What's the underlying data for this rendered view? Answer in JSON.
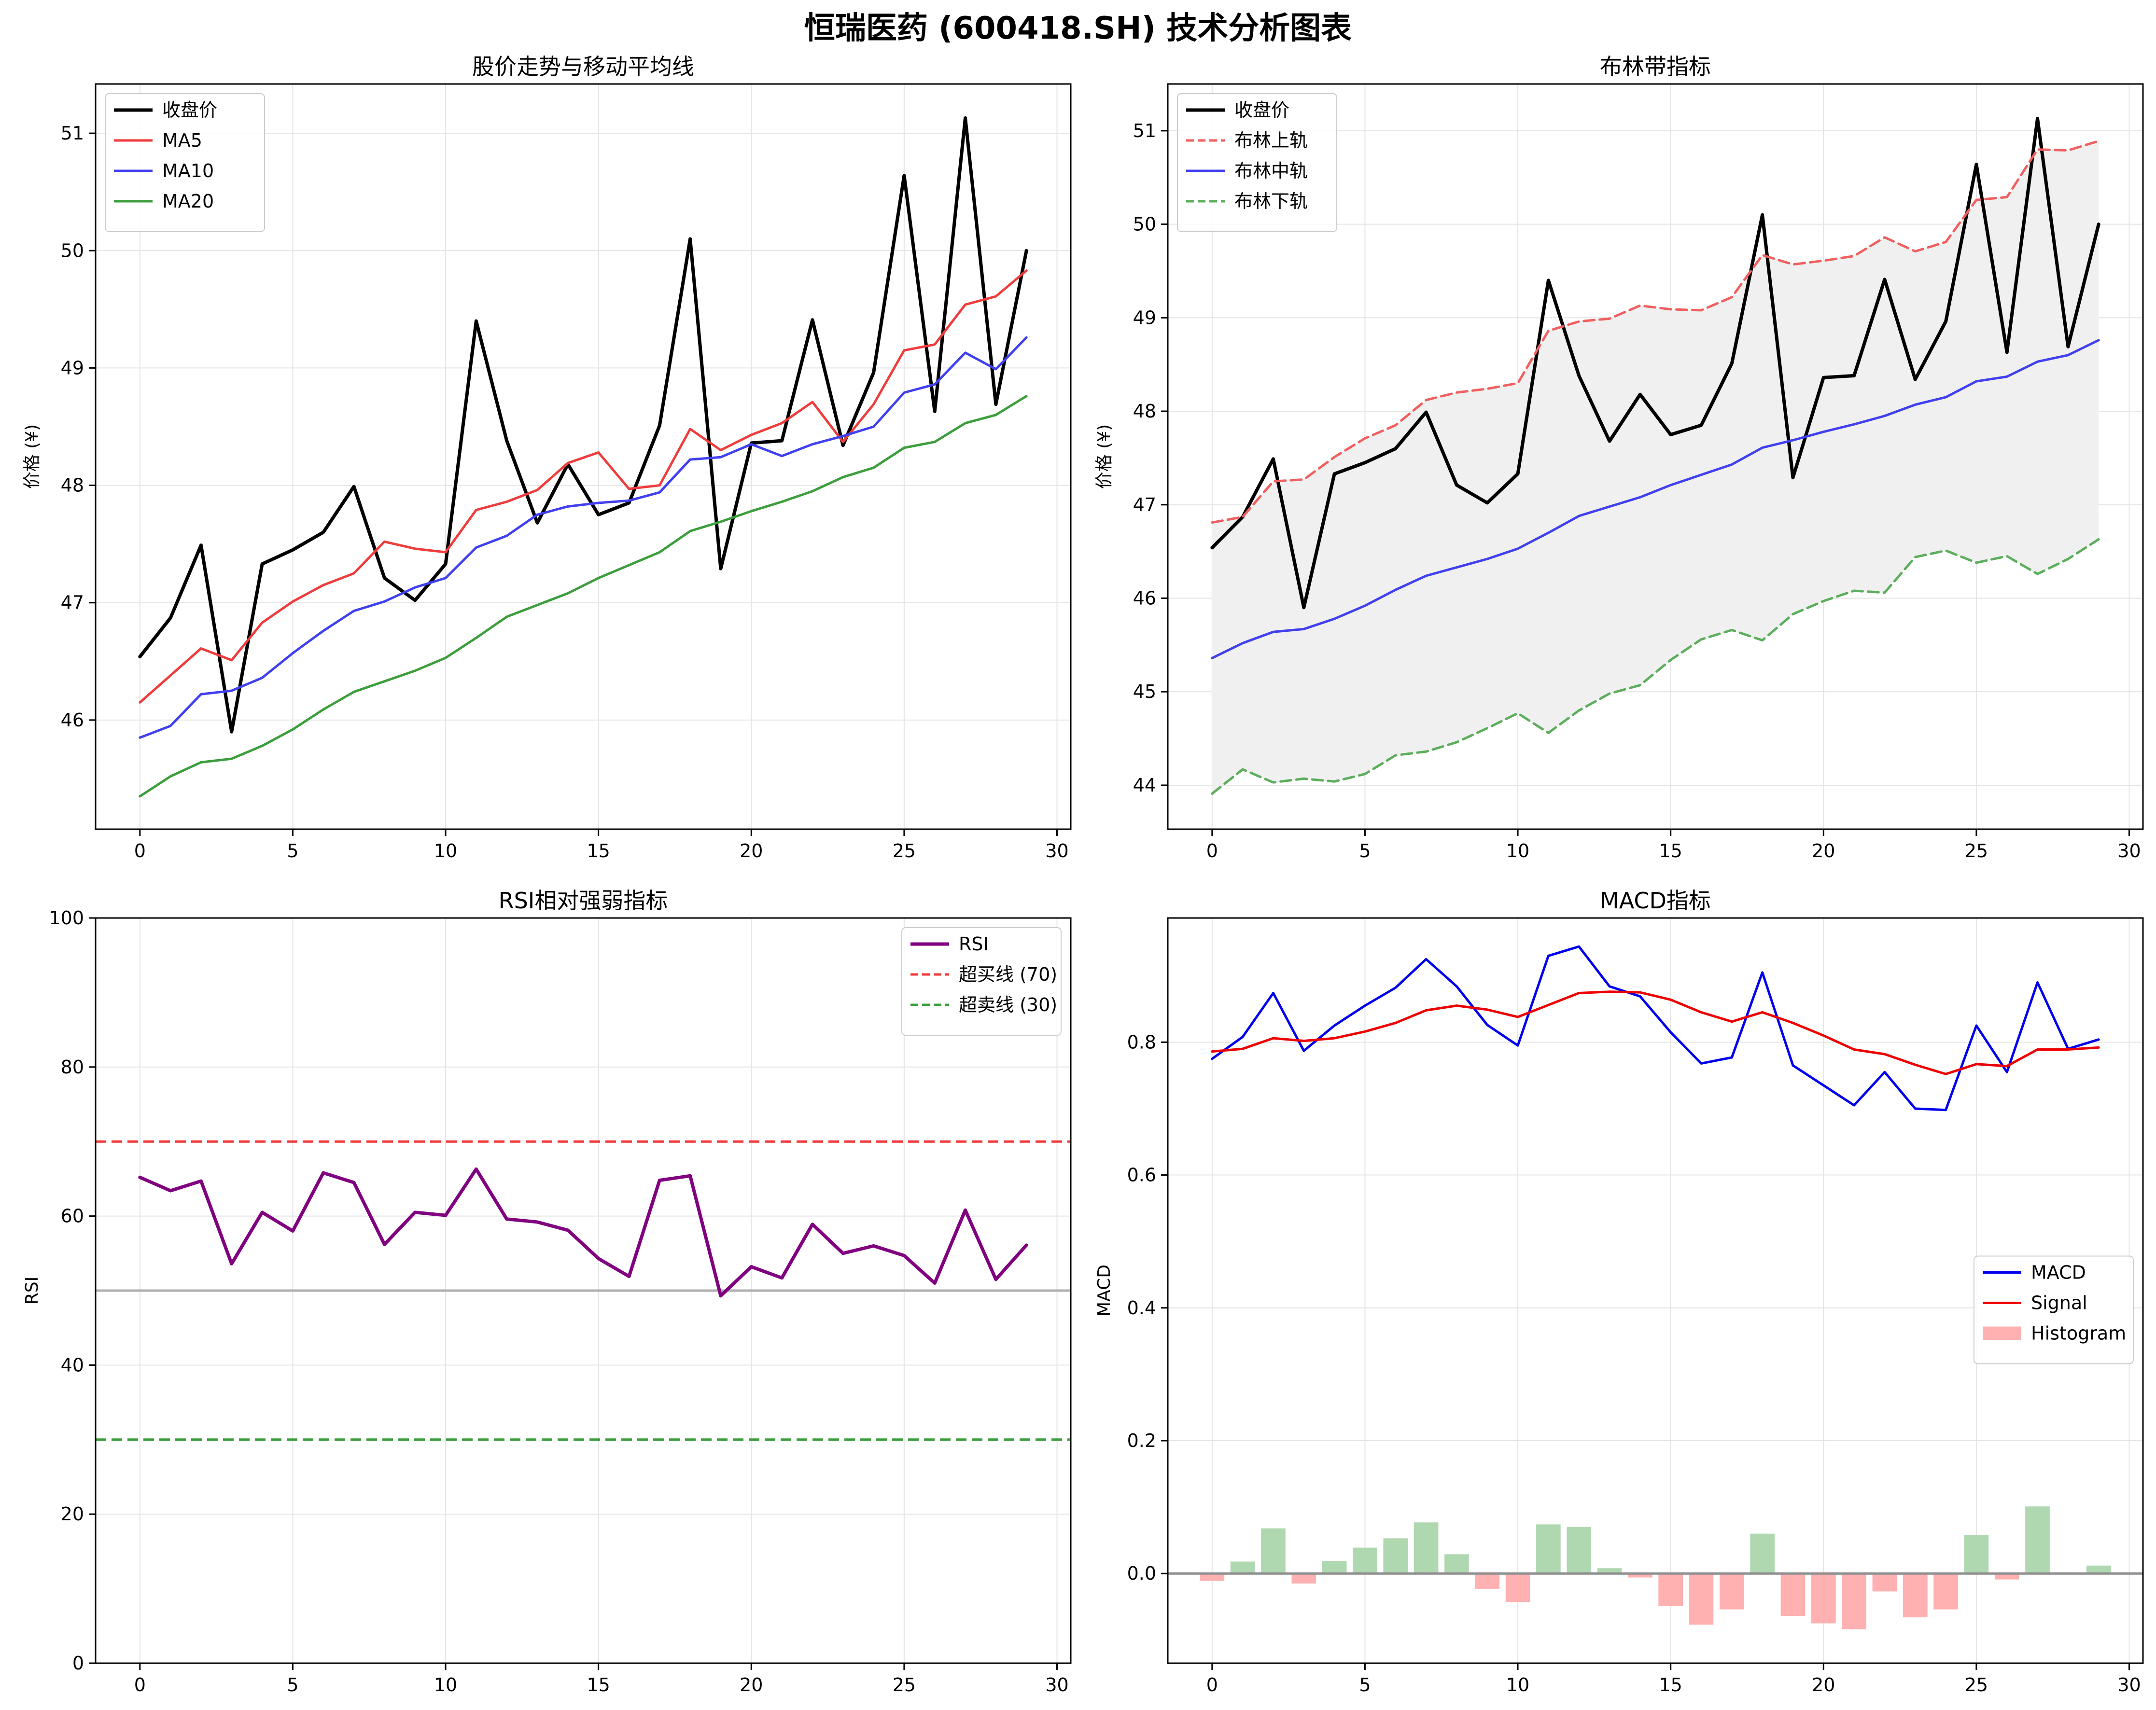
{
  "figure": {
    "title": "恒瑞医药 (600418.SH) 技术分析图表"
  },
  "chart_data": [
    {
      "type": "line",
      "title": "股价走势与移动平均线",
      "xlabel": "",
      "ylabel": "价格 (¥)",
      "xlim": [
        -1.45,
        30.45
      ],
      "ylim": [
        45.07,
        51.42
      ],
      "xticks": [
        0,
        5,
        10,
        15,
        20,
        25,
        30
      ],
      "yticks": [
        46,
        47,
        48,
        49,
        50,
        51
      ],
      "grid": true,
      "legend": "upper left",
      "x": [
        0,
        1,
        2,
        3,
        4,
        5,
        6,
        7,
        8,
        9,
        10,
        11,
        12,
        13,
        14,
        15,
        16,
        17,
        18,
        19,
        20,
        21,
        22,
        23,
        24,
        25,
        26,
        27,
        28,
        29
      ],
      "series": [
        {
          "name": "收盘价",
          "color": "#000000",
          "width": 7,
          "dash": "",
          "values": [
            46.54,
            46.87,
            47.49,
            45.9,
            47.33,
            47.45,
            47.6,
            47.99,
            47.21,
            47.02,
            47.33,
            49.4,
            48.38,
            47.68,
            48.18,
            47.75,
            47.85,
            48.51,
            50.1,
            47.29,
            48.36,
            48.38,
            49.41,
            48.34,
            48.96,
            50.64,
            48.63,
            51.13,
            48.69,
            50.0
          ]
        },
        {
          "name": "MA5",
          "color": "#f03c3c",
          "width": 5,
          "dash": "",
          "values": [
            46.15,
            46.38,
            46.61,
            46.51,
            46.83,
            47.01,
            47.15,
            47.25,
            47.52,
            47.46,
            47.43,
            47.79,
            47.86,
            47.96,
            48.19,
            48.28,
            47.97,
            48.0,
            48.48,
            48.3,
            48.43,
            48.53,
            48.71,
            48.37,
            48.69,
            49.15,
            49.2,
            49.54,
            49.61,
            49.83
          ]
        },
        {
          "name": "MA10",
          "color": "#4040f0",
          "width": 5,
          "dash": "",
          "values": [
            45.85,
            45.95,
            46.22,
            46.25,
            46.36,
            46.57,
            46.76,
            46.93,
            47.01,
            47.13,
            47.21,
            47.47,
            47.57,
            47.75,
            47.82,
            47.85,
            47.87,
            47.94,
            48.22,
            48.24,
            48.35,
            48.25,
            48.35,
            48.42,
            48.5,
            48.79,
            48.86,
            49.13,
            48.99,
            49.26
          ]
        },
        {
          "name": "MA20",
          "color": "#3c9e3c",
          "width": 5,
          "dash": "",
          "values": [
            45.35,
            45.52,
            45.64,
            45.67,
            45.78,
            45.92,
            46.09,
            46.24,
            46.33,
            46.42,
            46.53,
            46.7,
            46.88,
            46.98,
            47.08,
            47.21,
            47.32,
            47.43,
            47.61,
            47.69,
            47.78,
            47.86,
            47.95,
            48.07,
            48.15,
            48.32,
            48.37,
            48.53,
            48.6,
            48.76
          ]
        }
      ]
    },
    {
      "type": "line",
      "title": "布林带指标",
      "xlabel": "",
      "ylabel": "价格 (¥)",
      "xlim": [
        -1.45,
        30.45
      ],
      "ylim": [
        43.53,
        51.5
      ],
      "xticks": [
        0,
        5,
        10,
        15,
        20,
        25,
        30
      ],
      "yticks": [
        44,
        45,
        46,
        47,
        48,
        49,
        50,
        51
      ],
      "grid": true,
      "legend": "upper left",
      "band_fill": "#f0f0f0",
      "x": [
        0,
        1,
        2,
        3,
        4,
        5,
        6,
        7,
        8,
        9,
        10,
        11,
        12,
        13,
        14,
        15,
        16,
        17,
        18,
        19,
        20,
        21,
        22,
        23,
        24,
        25,
        26,
        27,
        28,
        29
      ],
      "series": [
        {
          "name": "收盘价",
          "color": "#000000",
          "width": 7,
          "dash": "",
          "values": [
            46.54,
            46.87,
            47.49,
            45.9,
            47.33,
            47.45,
            47.6,
            47.99,
            47.21,
            47.02,
            47.33,
            49.4,
            48.38,
            47.68,
            48.18,
            47.75,
            47.85,
            48.51,
            50.1,
            47.29,
            48.36,
            48.38,
            49.41,
            48.34,
            48.96,
            50.64,
            48.63,
            51.13,
            48.69,
            50.0
          ]
        },
        {
          "name": "布林上轨",
          "color": "#f06060",
          "width": 5,
          "dash": "22,11",
          "values": [
            46.81,
            46.87,
            47.25,
            47.27,
            47.51,
            47.71,
            47.85,
            48.12,
            48.2,
            48.24,
            48.3,
            48.86,
            48.96,
            48.99,
            49.13,
            49.09,
            49.08,
            49.22,
            49.67,
            49.57,
            49.61,
            49.66,
            49.86,
            49.71,
            49.81,
            50.26,
            50.29,
            50.8,
            50.79,
            50.89
          ]
        },
        {
          "name": "布林中轨",
          "color": "#4040f0",
          "width": 5,
          "dash": "",
          "values": [
            45.36,
            45.52,
            45.64,
            45.67,
            45.78,
            45.92,
            46.09,
            46.24,
            46.33,
            46.42,
            46.53,
            46.7,
            46.88,
            46.98,
            47.08,
            47.21,
            47.32,
            47.43,
            47.61,
            47.69,
            47.78,
            47.86,
            47.95,
            48.07,
            48.15,
            48.32,
            48.37,
            48.53,
            48.6,
            48.76
          ]
        },
        {
          "name": "布林下轨",
          "color": "#5cae5c",
          "width": 5,
          "dash": "22,11",
          "values": [
            43.91,
            44.17,
            44.03,
            44.07,
            44.04,
            44.12,
            44.32,
            44.36,
            44.46,
            44.61,
            44.77,
            44.56,
            44.8,
            44.98,
            45.07,
            45.34,
            45.56,
            45.66,
            45.55,
            45.83,
            45.97,
            46.08,
            46.06,
            46.44,
            46.51,
            46.38,
            46.45,
            46.26,
            46.42,
            46.63
          ]
        }
      ]
    },
    {
      "type": "line",
      "title": "RSI相对强弱指标",
      "xlabel": "",
      "ylabel": "RSI",
      "xlim": [
        -1.45,
        30.45
      ],
      "ylim": [
        0,
        100
      ],
      "xticks": [
        0,
        5,
        10,
        15,
        20,
        25,
        30
      ],
      "yticks": [
        0,
        20,
        40,
        60,
        80,
        100
      ],
      "grid": true,
      "legend": "upper right",
      "x": [
        0,
        1,
        2,
        3,
        4,
        5,
        6,
        7,
        8,
        9,
        10,
        11,
        12,
        13,
        14,
        15,
        16,
        17,
        18,
        19,
        20,
        21,
        22,
        23,
        24,
        25,
        26,
        27,
        28,
        29
      ],
      "series": [
        {
          "name": "RSI",
          "color": "#800080",
          "width": 7,
          "dash": "",
          "values": [
            65.2,
            63.4,
            64.7,
            53.6,
            60.5,
            58.0,
            65.8,
            64.5,
            56.2,
            60.5,
            60.1,
            66.3,
            59.6,
            59.2,
            58.1,
            54.3,
            51.9,
            64.8,
            65.4,
            49.3,
            53.2,
            51.7,
            58.9,
            55.0,
            56.0,
            54.7,
            51.0,
            60.8,
            51.5,
            56.1
          ]
        }
      ],
      "hlines": [
        {
          "name": "超买线 (70)",
          "value": 70,
          "color": "#f03c3c",
          "dash": "22,11",
          "legend": true
        },
        {
          "name": "超卖线 (30)",
          "value": 30,
          "color": "#3c9e3c",
          "dash": "22,11",
          "legend": true
        },
        {
          "name": "",
          "value": 50,
          "color": "#b0b0b0",
          "dash": "",
          "legend": false
        }
      ]
    },
    {
      "type": "line",
      "title": "MACD指标",
      "xlabel": "",
      "ylabel": "MACD",
      "xlim": [
        -1.45,
        30.45
      ],
      "ylim": [
        -0.135,
        0.987
      ],
      "xticks": [
        0,
        5,
        10,
        15,
        20,
        25,
        30
      ],
      "yticks": [
        0.0,
        0.2,
        0.4,
        0.6,
        0.8
      ],
      "grid": true,
      "legend": "center right",
      "x": [
        0,
        1,
        2,
        3,
        4,
        5,
        6,
        7,
        8,
        9,
        10,
        11,
        12,
        13,
        14,
        15,
        16,
        17,
        18,
        19,
        20,
        21,
        22,
        23,
        24,
        25,
        26,
        27,
        28,
        29
      ],
      "series": [
        {
          "name": "MACD",
          "color": "#0000ee",
          "width": 5,
          "dash": "",
          "values": [
            0.775,
            0.808,
            0.874,
            0.787,
            0.825,
            0.855,
            0.882,
            0.925,
            0.884,
            0.826,
            0.795,
            0.93,
            0.944,
            0.884,
            0.869,
            0.815,
            0.768,
            0.777,
            0.905,
            0.765,
            0.735,
            0.705,
            0.755,
            0.7,
            0.698,
            0.825,
            0.755,
            0.89,
            0.79,
            0.804
          ]
        },
        {
          "name": "Signal",
          "color": "#ee0000",
          "width": 5,
          "dash": "",
          "values": [
            0.786,
            0.79,
            0.806,
            0.802,
            0.806,
            0.816,
            0.829,
            0.848,
            0.855,
            0.849,
            0.838,
            0.856,
            0.874,
            0.876,
            0.875,
            0.864,
            0.845,
            0.831,
            0.845,
            0.829,
            0.81,
            0.789,
            0.782,
            0.766,
            0.752,
            0.767,
            0.764,
            0.789,
            0.789,
            0.792
          ]
        }
      ],
      "bars": {
        "name": "Histogram",
        "legend_color": "#ffb0b0",
        "pos_color": "#b0d8b0",
        "neg_color": "#ffb0b0",
        "width": 0.8,
        "values": [
          -0.011,
          0.018,
          0.068,
          -0.015,
          0.019,
          0.039,
          0.053,
          0.077,
          0.029,
          -0.023,
          -0.043,
          0.074,
          0.07,
          0.008,
          -0.006,
          -0.049,
          -0.077,
          -0.054,
          0.06,
          -0.064,
          -0.075,
          -0.084,
          -0.027,
          -0.066,
          -0.054,
          0.058,
          -0.009,
          0.101,
          0.001,
          0.012
        ]
      },
      "hlines": [
        {
          "name": "",
          "value": 0,
          "color": "#909090",
          "dash": "",
          "legend": false
        }
      ]
    }
  ]
}
